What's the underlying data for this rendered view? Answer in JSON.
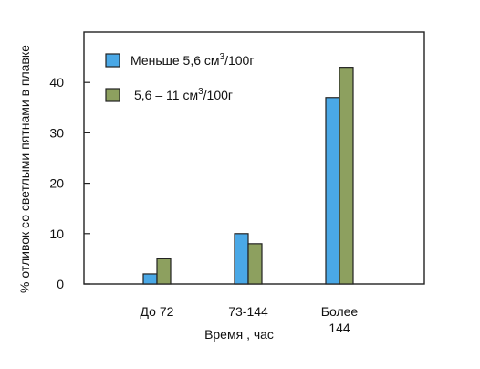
{
  "chart_data": {
    "type": "bar",
    "xlabel": "Время , час",
    "ylabel": "% отливок со светлыми пятнами в плавке",
    "ylim": [
      0,
      50
    ],
    "yticks": [
      0,
      10,
      20,
      30,
      40
    ],
    "categories": [
      {
        "lines": [
          "До 72"
        ]
      },
      {
        "lines": [
          "73-144"
        ]
      },
      {
        "lines": [
          "Более",
          "144"
        ]
      }
    ],
    "series": [
      {
        "name": "Меньше 5,6 см³/100г",
        "legend": {
          "prefix": "Меньше 5,6 см",
          "sup": "3",
          "suffix": "/100г"
        },
        "color": "#4aa8e6",
        "values": [
          2,
          10,
          37
        ]
      },
      {
        "name": "5,6 – 11 см³/100г",
        "legend": {
          "prefix": "5,6 – 11 см",
          "sup": "3",
          "suffix": "/100г"
        },
        "color": "#8da05f",
        "values": [
          5,
          8,
          43
        ]
      }
    ],
    "grid": false,
    "legend_position": "top-left"
  }
}
